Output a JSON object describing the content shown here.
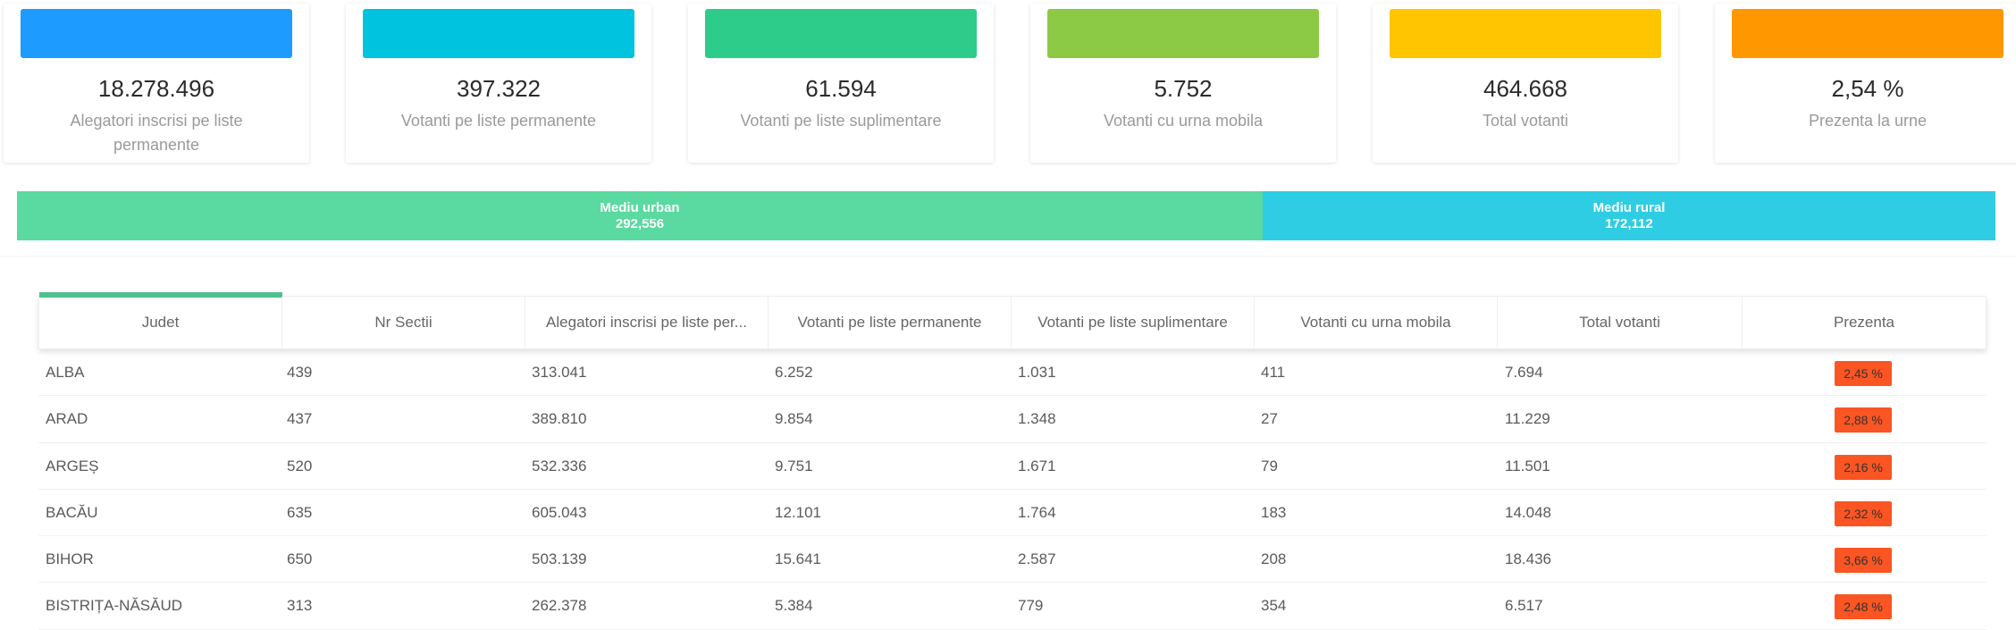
{
  "colors": {
    "card_blue": "#1e9bff",
    "card_cyan": "#00c4df",
    "card_green": "#2ecc8a",
    "card_lime": "#8cc944",
    "card_yellow": "#ffc600",
    "card_orange": "#ff9800",
    "urban": "#5ad9a0",
    "rural": "#2ecde3",
    "tab_active": "#4fc08d",
    "badge_red": "#fa5522"
  },
  "stats": [
    {
      "value": "18.278.496",
      "label": "Alegatori inscrisi pe liste permanente"
    },
    {
      "value": "397.322",
      "label": "Votanti pe liste permanente"
    },
    {
      "value": "61.594",
      "label": "Votanti pe liste suplimentare"
    },
    {
      "value": "5.752",
      "label": "Votanti cu urna mobila"
    },
    {
      "value": "464.668",
      "label": "Total votanti"
    },
    {
      "value": "2,54 %",
      "label": "Prezenta la urne"
    }
  ],
  "split": {
    "urban": {
      "title": "Mediu urban",
      "value": "292,556"
    },
    "rural": {
      "title": "Mediu rural",
      "value": "172,112"
    }
  },
  "table": {
    "columns": [
      "Judet",
      "Nr Sectii",
      "Alegatori inscrisi pe liste per...",
      "Votanti pe liste permanente",
      "Votanti pe liste suplimentare",
      "Votanti cu urna mobila",
      "Total votanti",
      "Prezenta"
    ],
    "rows": [
      [
        "ALBA",
        "439",
        "313.041",
        "6.252",
        "1.031",
        "411",
        "7.694",
        "2,45 %"
      ],
      [
        "ARAD",
        "437",
        "389.810",
        "9.854",
        "1.348",
        "27",
        "11.229",
        "2,88 %"
      ],
      [
        "ARGEȘ",
        "520",
        "532.336",
        "9.751",
        "1.671",
        "79",
        "11.501",
        "2,16 %"
      ],
      [
        "BACĂU",
        "635",
        "605.043",
        "12.101",
        "1.764",
        "183",
        "14.048",
        "2,32 %"
      ],
      [
        "BIHOR",
        "650",
        "503.139",
        "15.641",
        "2.587",
        "208",
        "18.436",
        "3,66 %"
      ],
      [
        "BISTRIȚA-NĂSĂUD",
        "313",
        "262.378",
        "5.384",
        "779",
        "354",
        "6.517",
        "2,48 %"
      ]
    ]
  }
}
